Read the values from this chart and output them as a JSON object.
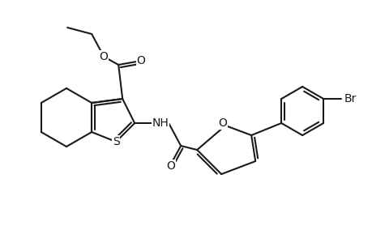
{
  "bg_color": "#ffffff",
  "line_color": "#1a1a1a",
  "line_width": 1.5,
  "font_size": 10,
  "figsize": [
    4.6,
    3.0
  ],
  "dpi": 100,
  "atoms": {
    "S_label": "S",
    "O_ester1": "O",
    "O_ester2": "O",
    "NH": "NH",
    "O_amide": "O",
    "O_furan": "O",
    "Br": "Br"
  }
}
